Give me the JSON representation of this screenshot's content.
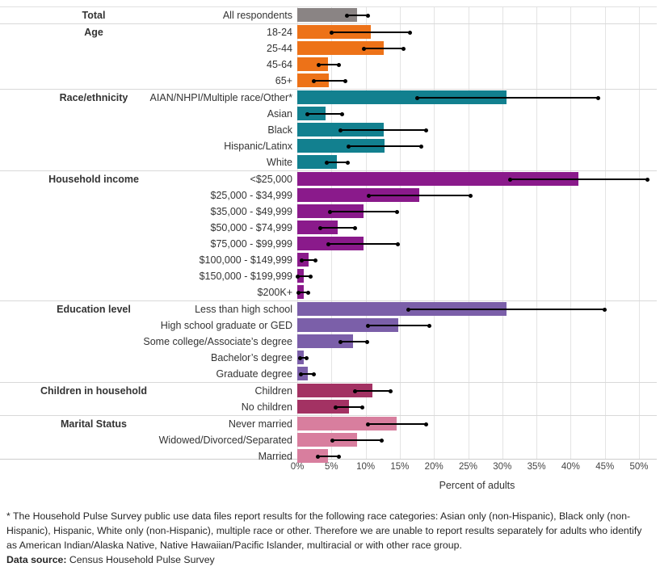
{
  "chart_data": {
    "type": "bar",
    "orientation": "horizontal",
    "title": "",
    "xlabel": "Percent of adults",
    "ylabel": "",
    "xlim": [
      0,
      52.6
    ],
    "grid": true,
    "x_ticks": [
      {
        "value": 0,
        "label": "0%"
      },
      {
        "value": 5,
        "label": "5%"
      },
      {
        "value": 10,
        "label": "10%"
      },
      {
        "value": 15,
        "label": "15%"
      },
      {
        "value": 20,
        "label": "20%"
      },
      {
        "value": 25,
        "label": "25%"
      },
      {
        "value": 30,
        "label": "30%"
      },
      {
        "value": 35,
        "label": "35%"
      },
      {
        "value": 40,
        "label": "40%"
      },
      {
        "value": 45,
        "label": "45%"
      },
      {
        "value": 50,
        "label": "50%"
      }
    ],
    "error_bars": "black line with dots at 95% CI bounds",
    "groups": [
      {
        "category": "Total",
        "color": "#8A8484",
        "rows": [
          {
            "label": "All respondents",
            "value": 8.7,
            "ci_low": 7.3,
            "ci_high": 10.3
          }
        ]
      },
      {
        "category": "Age",
        "color": "#ED7218",
        "rows": [
          {
            "label": "18-24",
            "value": 10.7,
            "ci_low": 5.0,
            "ci_high": 16.5
          },
          {
            "label": "25-44",
            "value": 12.6,
            "ci_low": 9.7,
            "ci_high": 15.6
          },
          {
            "label": "45-64",
            "value": 4.5,
            "ci_low": 3.1,
            "ci_high": 6.1
          },
          {
            "label": "65+",
            "value": 4.6,
            "ci_low": 2.4,
            "ci_high": 7.0
          }
        ]
      },
      {
        "category": "Race/ethnicity",
        "color": "#12808F",
        "rows": [
          {
            "label": "AIAN/NHPI/Multiple race/Other*",
            "value": 30.6,
            "ci_low": 17.5,
            "ci_high": 44.0
          },
          {
            "label": "Asian",
            "value": 4.1,
            "ci_low": 1.5,
            "ci_high": 6.6
          },
          {
            "label": "Black",
            "value": 12.6,
            "ci_low": 6.3,
            "ci_high": 18.9
          },
          {
            "label": "Hispanic/Latinx",
            "value": 12.8,
            "ci_low": 7.5,
            "ci_high": 18.1
          },
          {
            "label": "White",
            "value": 5.8,
            "ci_low": 4.3,
            "ci_high": 7.4
          }
        ]
      },
      {
        "category": "Household income",
        "color": "#8A1A8B",
        "rows": [
          {
            "label": "<$25,000",
            "value": 41.1,
            "ci_low": 31.2,
            "ci_high": 51.2
          },
          {
            "label": "$25,000 - $34,999",
            "value": 17.8,
            "ci_low": 10.5,
            "ci_high": 25.3
          },
          {
            "label": "$35,000 - $49,999",
            "value": 9.7,
            "ci_low": 4.8,
            "ci_high": 14.6
          },
          {
            "label": "$50,000 - $74,999",
            "value": 5.9,
            "ci_low": 3.4,
            "ci_high": 8.5
          },
          {
            "label": "$75,000 - $99,999",
            "value": 9.7,
            "ci_low": 4.6,
            "ci_high": 14.7
          },
          {
            "label": "$100,000 - $149,999",
            "value": 1.6,
            "ci_low": 0.7,
            "ci_high": 2.7
          },
          {
            "label": "$150,000 - $199,999",
            "value": 0.9,
            "ci_low": 0.1,
            "ci_high": 2.0
          },
          {
            "label": "$200K+",
            "value": 0.9,
            "ci_low": 0.2,
            "ci_high": 1.6
          }
        ]
      },
      {
        "category": "Education level",
        "color": "#7B5FA9",
        "rows": [
          {
            "label": "Less than high school",
            "value": 30.6,
            "ci_low": 16.2,
            "ci_high": 45.0
          },
          {
            "label": "High school graduate or GED",
            "value": 14.8,
            "ci_low": 10.4,
            "ci_high": 19.3
          },
          {
            "label": "Some college/Associate’s degree",
            "value": 8.2,
            "ci_low": 6.3,
            "ci_high": 10.2
          },
          {
            "label": "Bachelor’s degree",
            "value": 0.9,
            "ci_low": 0.4,
            "ci_high": 1.4
          },
          {
            "label": "Graduate degree",
            "value": 1.5,
            "ci_low": 0.5,
            "ci_high": 2.4
          }
        ]
      },
      {
        "category": "Children in household",
        "color": "#A33263",
        "rows": [
          {
            "label": "Children",
            "value": 11.0,
            "ci_low": 8.4,
            "ci_high": 13.6
          },
          {
            "label": "No children",
            "value": 7.6,
            "ci_low": 5.6,
            "ci_high": 9.5
          }
        ]
      },
      {
        "category": "Marital Status",
        "color": "#D87E9E",
        "rows": [
          {
            "label": "Never married",
            "value": 14.5,
            "ci_low": 10.3,
            "ci_high": 18.8
          },
          {
            "label": "Widowed/Divorced/Separated",
            "value": 8.8,
            "ci_low": 5.1,
            "ci_high": 12.4
          },
          {
            "label": "Married",
            "value": 4.5,
            "ci_low": 3.0,
            "ci_high": 6.1
          }
        ]
      }
    ]
  },
  "footnote": "* The Household Pulse Survey public use data files report results for the following race categories: Asian only (non-Hispanic), Black only (non-Hispanic), Hispanic, White only (non-Hispanic), multiple race or other. Therefore we are unable to report results separately for adults who identify as American Indian/Alaska Native, Native Hawaiian/Pacific Islander, multiracial or with other race group.",
  "source": {
    "label": "Data source:",
    "text": " Census Household Pulse Survey"
  }
}
